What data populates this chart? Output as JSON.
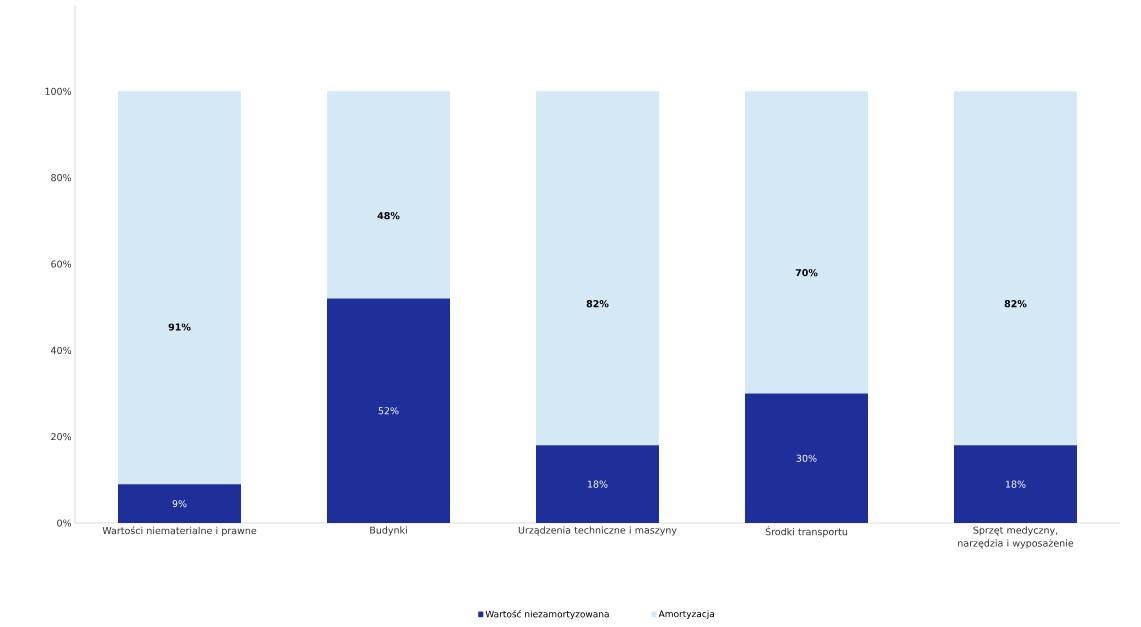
{
  "chart_data": {
    "type": "bar",
    "stacked": true,
    "categories": [
      "Wartości niematerialne i prawne",
      "Budynki",
      "Urządzenia techniczne i maszyny",
      "Środki transportu",
      "Sprzęt medyczny, narzędzia i wyposażenie"
    ],
    "series": [
      {
        "name": "Wartość niezamortyzowana",
        "color": "#1f2f9a",
        "values": [
          9,
          52,
          18,
          30,
          18
        ],
        "value_labels": [
          "9%",
          "52%",
          "18%",
          "30%",
          "18%"
        ]
      },
      {
        "name": "Amortyzacja",
        "color": "#d4e8f6",
        "values": [
          91,
          48,
          82,
          70,
          82
        ],
        "value_labels": [
          "91%",
          "48%",
          "82%",
          "70%",
          "82%"
        ]
      }
    ],
    "ylim": [
      0,
      120
    ],
    "yticks": [
      {
        "value": 0,
        "label": "0%"
      },
      {
        "value": 20,
        "label": "20%"
      },
      {
        "value": 40,
        "label": "40%"
      },
      {
        "value": 60,
        "label": "60%"
      },
      {
        "value": 80,
        "label": "80%"
      },
      {
        "value": 100,
        "label": "100%"
      }
    ],
    "grid": false,
    "legend": "bottom"
  }
}
